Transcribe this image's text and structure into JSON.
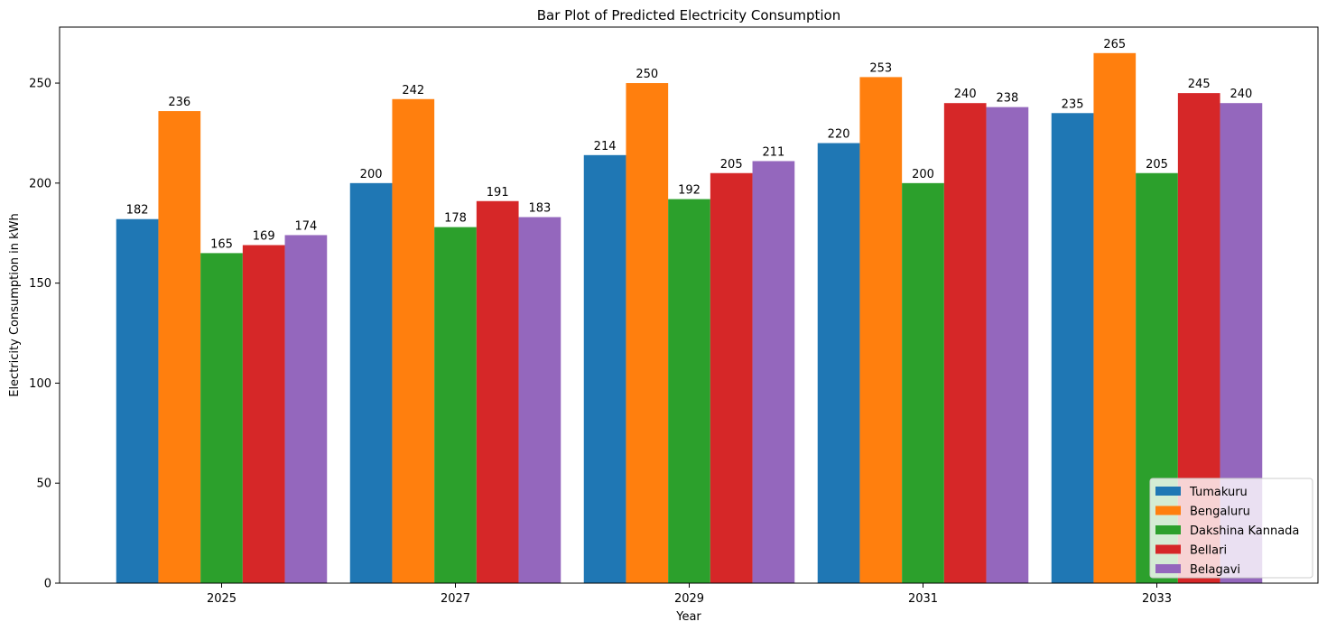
{
  "chart_data": {
    "type": "bar",
    "title": "Bar Plot of Predicted Electricity Consumption",
    "xlabel": "Year",
    "ylabel": "Electricity Consumption in kWh",
    "categories": [
      "2025",
      "2027",
      "2029",
      "2031",
      "2033"
    ],
    "ylim": [
      0,
      278
    ],
    "yticks": [
      0,
      50,
      100,
      150,
      200,
      250
    ],
    "grid": false,
    "legend_position": "lower-right",
    "series": [
      {
        "name": "Tumakuru",
        "color": "#1f77b4",
        "values": [
          182,
          200,
          214,
          220,
          235
        ]
      },
      {
        "name": "Bengaluru",
        "color": "#ff7f0e",
        "values": [
          236,
          242,
          250,
          253,
          265
        ]
      },
      {
        "name": "Dakshina Kannada",
        "color": "#2ca02c",
        "values": [
          165,
          178,
          192,
          200,
          205
        ]
      },
      {
        "name": "Bellari",
        "color": "#d62728",
        "values": [
          169,
          191,
          205,
          240,
          245
        ]
      },
      {
        "name": "Belagavi",
        "color": "#9467bd",
        "values": [
          174,
          183,
          211,
          238,
          240
        ]
      }
    ]
  }
}
